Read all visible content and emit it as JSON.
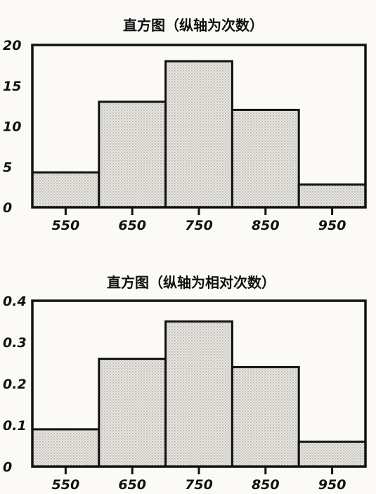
{
  "chart_data": [
    {
      "type": "bar",
      "title": "直方图（纵轴为次数）",
      "categories": [
        "550",
        "650",
        "750",
        "850",
        "950"
      ],
      "values": [
        4.3,
        13,
        18,
        12,
        2.8
      ],
      "ylim": [
        0,
        20
      ],
      "yticks": [
        "0",
        "5",
        "10",
        "15",
        "20"
      ],
      "xlabel": "",
      "ylabel": "",
      "grid": false
    },
    {
      "type": "bar",
      "title": "直方图（纵轴为相对次数）",
      "categories": [
        "550",
        "650",
        "750",
        "850",
        "950"
      ],
      "values": [
        0.09,
        0.26,
        0.35,
        0.24,
        0.06
      ],
      "ylim": [
        0,
        0.4
      ],
      "yticks": [
        "0",
        "0.1",
        "0.2",
        "0.3",
        "0.4"
      ],
      "xlabel": "",
      "ylabel": "",
      "grid": false
    }
  ],
  "colors": {
    "bar_fill": "#e4e2dc",
    "ink": "#111111"
  }
}
